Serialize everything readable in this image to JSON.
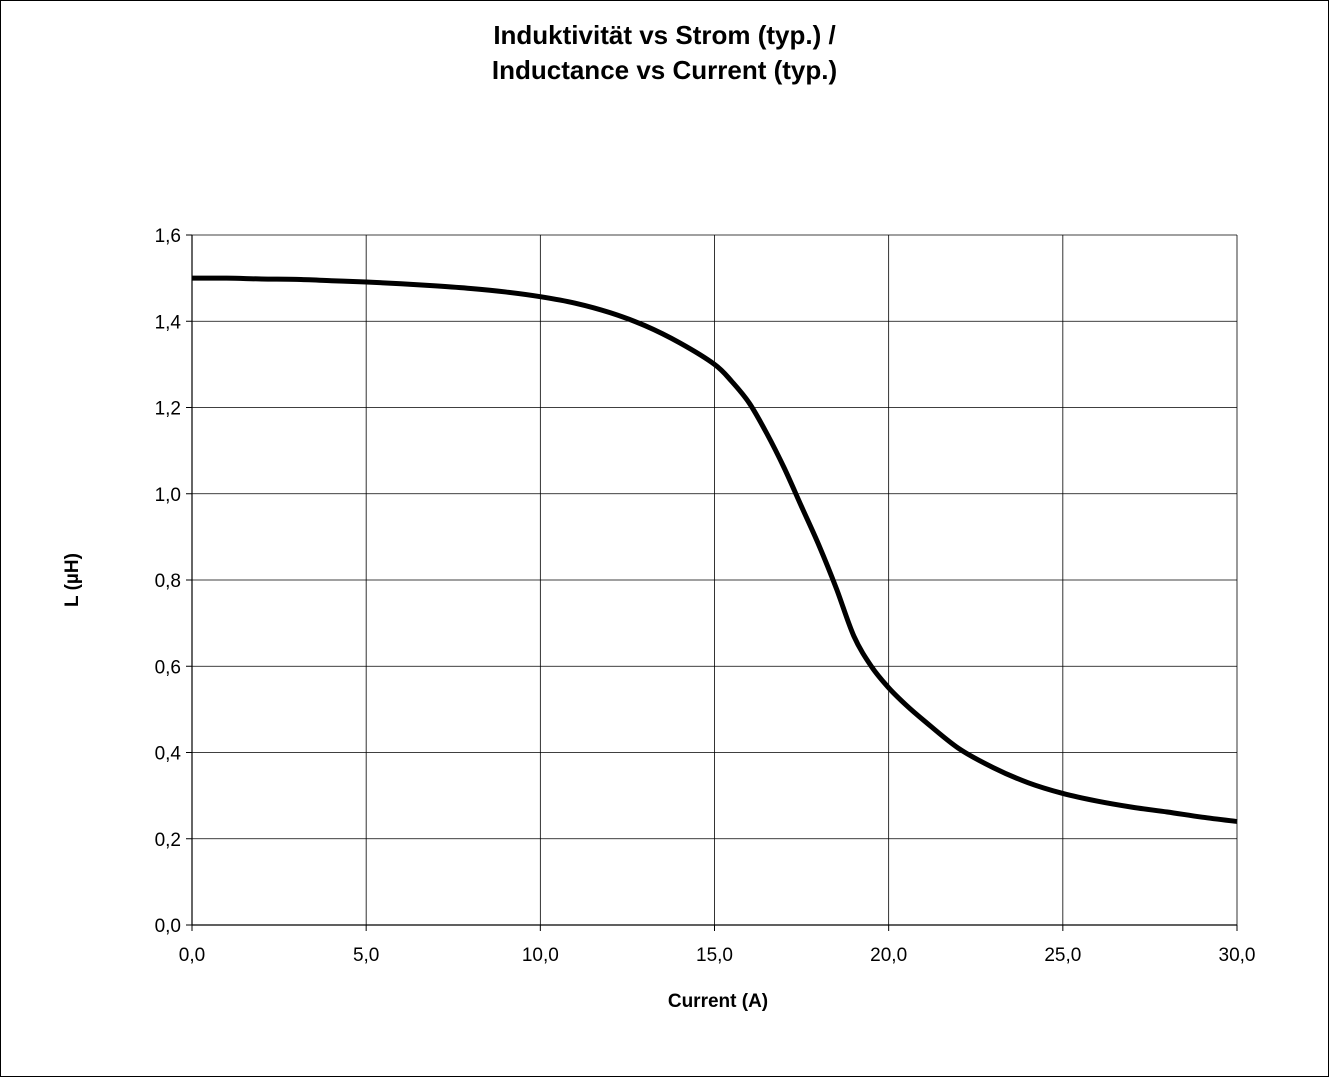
{
  "chart_data": {
    "type": "line",
    "title_lines": [
      "Induktivität vs Strom (typ.) /",
      "Inductance vs Current (typ.)"
    ],
    "xlabel": "Current (A)",
    "ylabel": "L (µH)",
    "xlim": [
      0,
      30
    ],
    "ylim": [
      0,
      1.6
    ],
    "x_ticks": [
      "0,0",
      "5,0",
      "10,0",
      "15,0",
      "20,0",
      "25,0",
      "30,0"
    ],
    "y_ticks": [
      "0,0",
      "0,2",
      "0,4",
      "0,6",
      "0,8",
      "1,0",
      "1,2",
      "1,4",
      "1,6"
    ],
    "grid": true,
    "line_color": "#000000",
    "series": [
      {
        "x": [
          0,
          1,
          2,
          3,
          4,
          5,
          6,
          7,
          8,
          9,
          10,
          11,
          12,
          13,
          14,
          15,
          15.5,
          16,
          16.5,
          17,
          17.5,
          18,
          18.5,
          19,
          19.5,
          20,
          20.5,
          21,
          22,
          23,
          24,
          25,
          26,
          27,
          28,
          29,
          30
        ],
        "y": [
          1.5,
          1.5,
          1.498,
          1.497,
          1.494,
          1.491,
          1.487,
          1.482,
          1.476,
          1.468,
          1.457,
          1.442,
          1.42,
          1.39,
          1.35,
          1.3,
          1.26,
          1.21,
          1.14,
          1.06,
          0.97,
          0.88,
          0.78,
          0.67,
          0.6,
          0.55,
          0.51,
          0.475,
          0.41,
          0.365,
          0.33,
          0.305,
          0.287,
          0.273,
          0.262,
          0.25,
          0.24
        ]
      }
    ]
  }
}
